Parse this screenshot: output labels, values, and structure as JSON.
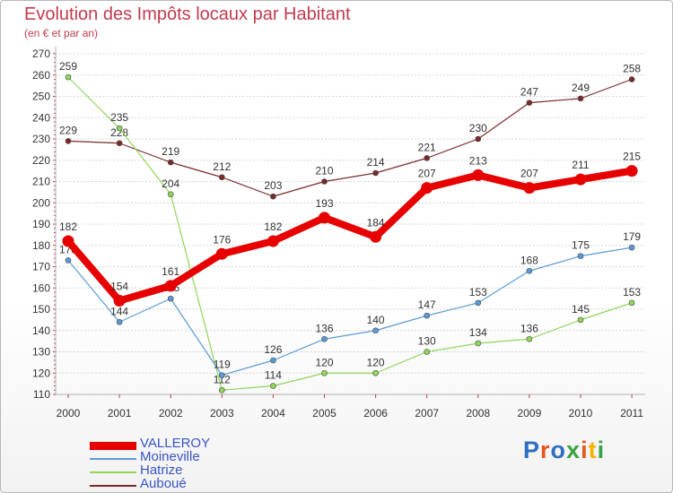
{
  "title": "Evolution des Impôts locaux par Habitant",
  "subtitle": "(en € et par an)",
  "logo": {
    "text": "Proxiti",
    "letters": [
      "P",
      "r",
      "o",
      "x",
      "i",
      "t",
      "i"
    ],
    "colors": [
      "#2f6fc1",
      "#e8561f",
      "#2f6fc1",
      "#3aa341",
      "#e8561f",
      "#f5b400",
      "#3aa341"
    ]
  },
  "chart_data": {
    "type": "line",
    "x": [
      "2000",
      "2001",
      "2002",
      "2003",
      "2004",
      "2005",
      "2006",
      "2007",
      "2008",
      "2009",
      "2010",
      "2011"
    ],
    "ylim": [
      110,
      270
    ],
    "yticks": [
      110,
      120,
      130,
      140,
      150,
      160,
      170,
      180,
      190,
      200,
      210,
      220,
      230,
      240,
      250,
      260,
      270
    ],
    "grid": "horizontal",
    "legend": "bottom-left",
    "series": [
      {
        "name": "Auboué",
        "color": "#7a2a2a",
        "width": 1.2,
        "values": [
          229,
          228,
          219,
          212,
          203,
          210,
          214,
          221,
          230,
          247,
          249,
          258
        ]
      },
      {
        "name": "Hatrize",
        "color": "#8fd65a",
        "width": 1.2,
        "values": [
          259,
          235,
          204,
          112,
          114,
          120,
          120,
          130,
          134,
          136,
          145,
          153
        ]
      },
      {
        "name": "Moineville",
        "color": "#5b9bd5",
        "width": 1.2,
        "values": [
          173,
          144,
          155,
          119,
          126,
          136,
          140,
          147,
          153,
          168,
          175,
          179
        ]
      },
      {
        "name": "VALLEROY",
        "color": "#e60000",
        "width": 8,
        "values": [
          182,
          154,
          161,
          176,
          182,
          193,
          184,
          207,
          213,
          207,
          211,
          215
        ]
      }
    ],
    "legend_order": [
      "VALLEROY",
      "Moineville",
      "Hatrize",
      "Auboué"
    ]
  }
}
